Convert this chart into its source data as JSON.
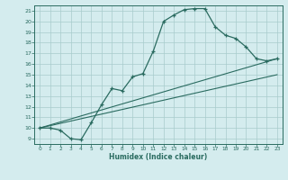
{
  "xlabel": "Humidex (Indice chaleur)",
  "ylabel": "",
  "bg_color": "#d4ecee",
  "grid_color": "#a8cccc",
  "line_color": "#2a6b60",
  "xlim": [
    -0.5,
    23.5
  ],
  "ylim": [
    8.5,
    21.5
  ],
  "xticks": [
    0,
    1,
    2,
    3,
    4,
    5,
    6,
    7,
    8,
    9,
    10,
    11,
    12,
    13,
    14,
    15,
    16,
    17,
    18,
    19,
    20,
    21,
    22,
    23
  ],
  "yticks": [
    9,
    10,
    11,
    12,
    13,
    14,
    15,
    16,
    17,
    18,
    19,
    20,
    21
  ],
  "curve1_x": [
    0,
    1,
    2,
    3,
    4,
    5,
    6,
    7,
    8,
    9,
    10,
    11,
    12,
    13,
    14,
    15,
    16,
    17,
    18,
    19,
    20,
    21,
    22,
    23
  ],
  "curve1_y": [
    10,
    10,
    9.8,
    9.0,
    8.9,
    10.5,
    12.2,
    13.7,
    13.5,
    14.8,
    15.1,
    17.2,
    20.0,
    20.6,
    21.1,
    21.2,
    21.2,
    19.5,
    18.7,
    18.4,
    17.6,
    16.5,
    16.3,
    16.5
  ],
  "curve2_x": [
    0,
    23
  ],
  "curve2_y": [
    10,
    16.5
  ],
  "curve3_x": [
    0,
    23
  ],
  "curve3_y": [
    10,
    15.0
  ]
}
